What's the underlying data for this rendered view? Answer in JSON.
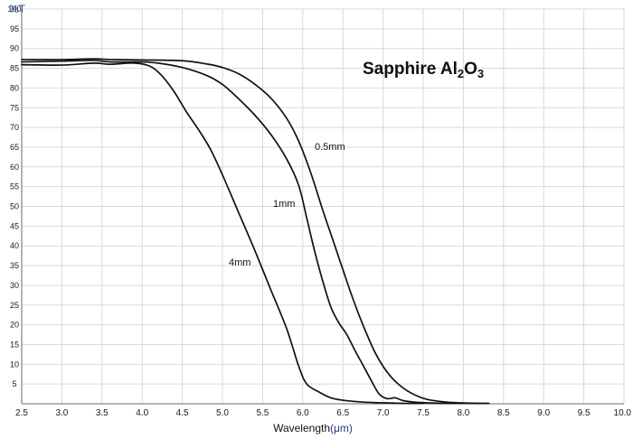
{
  "chart_data": {
    "type": "line",
    "title": {
      "pre": "Sapphire Al",
      "sub1": "2",
      "mid": "O",
      "sub2": "3"
    },
    "ylabel": "%T",
    "xlabel": {
      "text": "Wavelength",
      "unit": "(μm)"
    },
    "xlim": [
      2.5,
      10.0
    ],
    "ylim": [
      0,
      100
    ],
    "x_ticks": [
      "2.5",
      "3.0",
      "3.5",
      "4.0",
      "4.5",
      "5.0",
      "5.5",
      "6.0",
      "6.5",
      "7.0",
      "7.5",
      "8.0",
      "8.5",
      "9.0",
      "9.5",
      "10.0"
    ],
    "y_ticks": [
      "5",
      "10",
      "15",
      "20",
      "25",
      "30",
      "35",
      "40",
      "45",
      "50",
      "55",
      "60",
      "65",
      "70",
      "75",
      "80",
      "85",
      "90",
      "95",
      "100"
    ],
    "grid": true,
    "series": [
      {
        "name": "0.5mm",
        "x": [
          2.5,
          3.0,
          3.4,
          3.6,
          4.0,
          4.5,
          4.8,
          5.0,
          5.2,
          5.4,
          5.6,
          5.8,
          5.95,
          6.1,
          6.25,
          6.4,
          6.5,
          6.6,
          6.7,
          6.8,
          6.9,
          7.0,
          7.1,
          7.2,
          7.3,
          7.4,
          7.5,
          7.6,
          7.8,
          8.0,
          8.2,
          8.32
        ],
        "y": [
          87.2,
          87.2,
          87.4,
          87.2,
          87.1,
          86.9,
          86.1,
          85.2,
          83.6,
          81.0,
          77.5,
          72.3,
          66.5,
          58.5,
          49.0,
          40.0,
          34.0,
          28.0,
          22.5,
          17.5,
          13.0,
          9.5,
          6.8,
          4.8,
          3.3,
          2.2,
          1.4,
          0.9,
          0.4,
          0.2,
          0.1,
          0.1
        ]
      },
      {
        "name": "1mm",
        "x": [
          2.5,
          3.0,
          3.4,
          3.6,
          4.0,
          4.2,
          4.5,
          4.8,
          5.0,
          5.2,
          5.4,
          5.6,
          5.8,
          5.95,
          6.05,
          6.15,
          6.25,
          6.35,
          6.45,
          6.55,
          6.65,
          6.75,
          6.85,
          6.95,
          7.05,
          7.15,
          7.25,
          7.4,
          7.6,
          7.8,
          8.0,
          8.3
        ],
        "y": [
          86.6,
          86.8,
          87.0,
          86.6,
          86.6,
          86.3,
          85.2,
          83.2,
          80.9,
          77.3,
          73.2,
          68.3,
          62.0,
          55.3,
          47.0,
          38.5,
          31.0,
          24.5,
          20.5,
          17.5,
          13.5,
          9.8,
          6.0,
          2.5,
          1.3,
          1.5,
          0.8,
          0.4,
          0.2,
          0.1,
          0.1,
          0.1
        ]
      },
      {
        "name": "4mm",
        "x": [
          2.5,
          3.0,
          3.4,
          3.6,
          3.9,
          4.1,
          4.25,
          4.4,
          4.55,
          4.7,
          4.85,
          5.0,
          5.2,
          5.4,
          5.6,
          5.8,
          5.95,
          6.05,
          6.2,
          6.35,
          6.5,
          6.7,
          6.9,
          7.1,
          7.3,
          7.5
        ],
        "y": [
          85.9,
          85.8,
          86.3,
          86.0,
          86.3,
          85.5,
          83.0,
          79.0,
          74.0,
          69.5,
          64.5,
          58.0,
          48.5,
          39.0,
          29.0,
          19.0,
          9.5,
          5.0,
          3.0,
          1.5,
          0.9,
          0.5,
          0.3,
          0.2,
          0.1,
          0.1
        ]
      }
    ],
    "annotations": [
      "0.5mm",
      "1mm",
      "4mm"
    ]
  }
}
